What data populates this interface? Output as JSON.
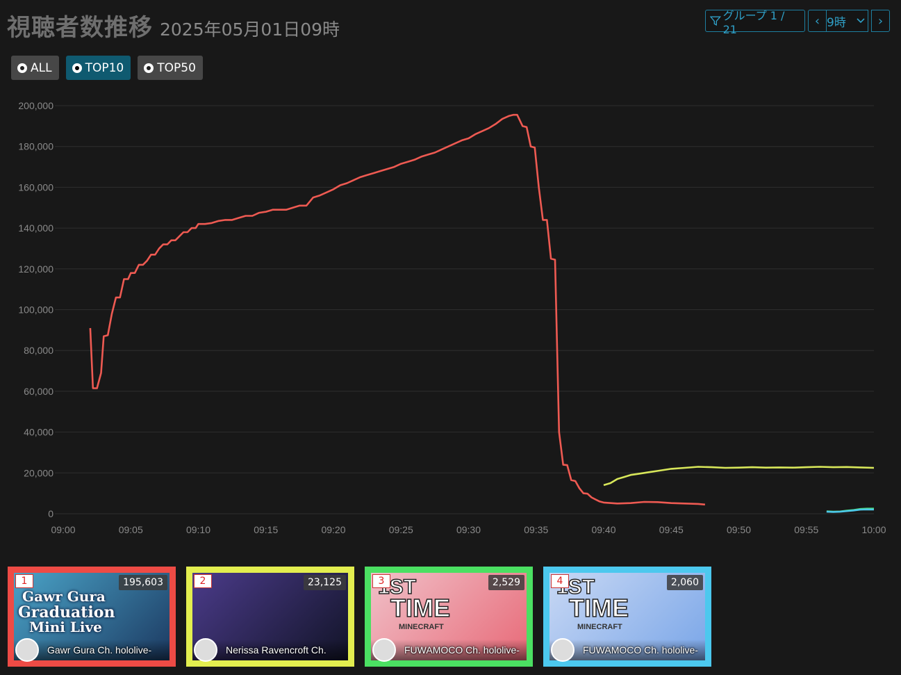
{
  "header": {
    "title": "視聴者数推移",
    "date": "2025年05月01日09時",
    "group_label": "グループ 1 / 21",
    "hour_value": "9時"
  },
  "filters": [
    {
      "label": "ALL",
      "selected": false
    },
    {
      "label": "TOP10",
      "selected": true
    },
    {
      "label": "TOP50",
      "selected": false
    }
  ],
  "chart_data": {
    "type": "line",
    "x_ticks": [
      "09:00",
      "09:05",
      "09:10",
      "09:15",
      "09:20",
      "09:25",
      "09:30",
      "09:35",
      "09:40",
      "09:45",
      "09:50",
      "09:55",
      "10:00"
    ],
    "y_ticks": [
      "200,000",
      "180,000",
      "160,000",
      "140,000",
      "120,000",
      "100,000",
      "80,000",
      "60,000",
      "40,000",
      "20,000",
      "0"
    ],
    "xlim": [
      0,
      60
    ],
    "ylim": [
      0,
      200000
    ],
    "grid": true,
    "series": [
      {
        "color": "#ee5a52",
        "points": [
          [
            2,
            91000
          ],
          [
            2.2,
            61500
          ],
          [
            2.5,
            61500
          ],
          [
            2.8,
            69000
          ],
          [
            3,
            87000
          ],
          [
            3.3,
            87500
          ],
          [
            3.6,
            98000
          ],
          [
            3.9,
            106000
          ],
          [
            4.2,
            106000
          ],
          [
            4.5,
            115000
          ],
          [
            4.8,
            115000
          ],
          [
            5,
            118000
          ],
          [
            5.3,
            118000
          ],
          [
            5.6,
            122000
          ],
          [
            5.9,
            122000
          ],
          [
            6.2,
            124000
          ],
          [
            6.5,
            127000
          ],
          [
            6.8,
            127000
          ],
          [
            7.1,
            130000
          ],
          [
            7.4,
            132000
          ],
          [
            7.7,
            132000
          ],
          [
            8,
            134000
          ],
          [
            8.3,
            134000
          ],
          [
            8.6,
            136000
          ],
          [
            8.9,
            138000
          ],
          [
            9.2,
            138000
          ],
          [
            9.5,
            140000
          ],
          [
            9.8,
            140000
          ],
          [
            10,
            142000
          ],
          [
            10.5,
            142000
          ],
          [
            11,
            142500
          ],
          [
            11.5,
            143500
          ],
          [
            12,
            144000
          ],
          [
            12.5,
            144000
          ],
          [
            13,
            145000
          ],
          [
            13.5,
            146000
          ],
          [
            14,
            146000
          ],
          [
            14.5,
            147500
          ],
          [
            15,
            148000
          ],
          [
            15.5,
            149000
          ],
          [
            16,
            149000
          ],
          [
            16.5,
            149000
          ],
          [
            17,
            150000
          ],
          [
            17.5,
            151000
          ],
          [
            18,
            151000
          ],
          [
            18.5,
            155000
          ],
          [
            19,
            156000
          ],
          [
            19.5,
            157500
          ],
          [
            20,
            159000
          ],
          [
            20.5,
            161000
          ],
          [
            21,
            162000
          ],
          [
            21.5,
            163500
          ],
          [
            22,
            165000
          ],
          [
            22.5,
            166000
          ],
          [
            23,
            167000
          ],
          [
            23.5,
            168000
          ],
          [
            24,
            169000
          ],
          [
            24.5,
            170000
          ],
          [
            25,
            171500
          ],
          [
            25.5,
            172500
          ],
          [
            26,
            173500
          ],
          [
            26.5,
            175000
          ],
          [
            27,
            176000
          ],
          [
            27.5,
            177000
          ],
          [
            28,
            178500
          ],
          [
            28.5,
            180000
          ],
          [
            29,
            181500
          ],
          [
            29.5,
            183000
          ],
          [
            30,
            184000
          ],
          [
            30.5,
            186000
          ],
          [
            31,
            187500
          ],
          [
            31.5,
            189000
          ],
          [
            32,
            191000
          ],
          [
            32.5,
            193500
          ],
          [
            33,
            195000
          ],
          [
            33.3,
            195500
          ],
          [
            33.6,
            195500
          ],
          [
            34,
            190000
          ],
          [
            34.3,
            189500
          ],
          [
            34.6,
            180000
          ],
          [
            34.9,
            179500
          ],
          [
            35.2,
            160000
          ],
          [
            35.5,
            144000
          ],
          [
            35.8,
            144000
          ],
          [
            36.1,
            125000
          ],
          [
            36.4,
            124500
          ],
          [
            36.7,
            40000
          ],
          [
            37,
            24000
          ],
          [
            37.3,
            23800
          ],
          [
            37.6,
            16500
          ],
          [
            37.9,
            16000
          ],
          [
            38.2,
            12500
          ],
          [
            38.5,
            10000
          ],
          [
            38.8,
            9800
          ],
          [
            39.1,
            8000
          ],
          [
            39.4,
            7000
          ],
          [
            39.7,
            6000
          ],
          [
            40,
            5500
          ],
          [
            41,
            5000
          ],
          [
            42,
            5200
          ],
          [
            43,
            5800
          ],
          [
            44,
            5700
          ],
          [
            45,
            5200
          ],
          [
            46,
            5000
          ],
          [
            47,
            4800
          ],
          [
            47.5,
            4500
          ]
        ]
      },
      {
        "color": "#d8e75a",
        "points": [
          [
            40,
            14000
          ],
          [
            40.5,
            15000
          ],
          [
            41,
            17000
          ],
          [
            41.5,
            18000
          ],
          [
            42,
            19000
          ],
          [
            42.5,
            19500
          ],
          [
            43,
            20000
          ],
          [
            43.5,
            20500
          ],
          [
            44,
            21000
          ],
          [
            45,
            22000
          ],
          [
            46,
            22500
          ],
          [
            47,
            23000
          ],
          [
            48,
            22800
          ],
          [
            49,
            22500
          ],
          [
            50,
            22600
          ],
          [
            51,
            22800
          ],
          [
            52,
            22600
          ],
          [
            53,
            22700
          ],
          [
            54,
            22600
          ],
          [
            55,
            22800
          ],
          [
            56,
            23000
          ],
          [
            57,
            22800
          ],
          [
            58,
            22900
          ],
          [
            59,
            22700
          ],
          [
            60,
            22500
          ]
        ]
      },
      {
        "color": "#4ae07a",
        "points": [
          [
            56.5,
            1200
          ],
          [
            57,
            1000
          ],
          [
            57.5,
            1100
          ],
          [
            58,
            1500
          ],
          [
            58.5,
            1800
          ],
          [
            59,
            2300
          ],
          [
            59.5,
            2500
          ],
          [
            60,
            2500
          ]
        ]
      },
      {
        "color": "#4cc8e8",
        "points": [
          [
            56.5,
            1000
          ],
          [
            57,
            900
          ],
          [
            57.5,
            1000
          ],
          [
            58,
            1300
          ],
          [
            58.5,
            1600
          ],
          [
            59,
            2000
          ],
          [
            59.5,
            2100
          ],
          [
            60,
            2060
          ]
        ]
      }
    ]
  },
  "cards": [
    {
      "rank": "1",
      "count": "195,603",
      "channel": "Gawr Gura Ch. hololive-",
      "border": "#ee4b45",
      "bg1": "#4aa3c7",
      "bg2": "#1c3a62",
      "thumb_line1": "Gawr Gura",
      "thumb_line2": "Graduation",
      "thumb_line3": "Mini Live"
    },
    {
      "rank": "2",
      "count": "23,125",
      "channel": "Nerissa Ravencroft Ch.",
      "border": "#e3ee4f",
      "bg1": "#4b3b8a",
      "bg2": "#121428",
      "thumb_line1": "",
      "thumb_line2": "",
      "thumb_line3": ""
    },
    {
      "rank": "3",
      "count": "2,529",
      "channel": "FUWAMOCO Ch. hololive-",
      "border": "#4be062",
      "bg1": "#f0c0c8",
      "bg2": "#e86a78",
      "thumb_line1": "1ST",
      "thumb_line2": "TIME",
      "thumb_line3": "MINECRAFT"
    },
    {
      "rank": "4",
      "count": "2,060",
      "channel": "FUWAMOCO Ch. hololive-",
      "border": "#4cc8ee",
      "bg1": "#c8d8f4",
      "bg2": "#7aa6e8",
      "thumb_line1": "1ST",
      "thumb_line2": "TIME",
      "thumb_line3": "MINECRAFT"
    }
  ]
}
